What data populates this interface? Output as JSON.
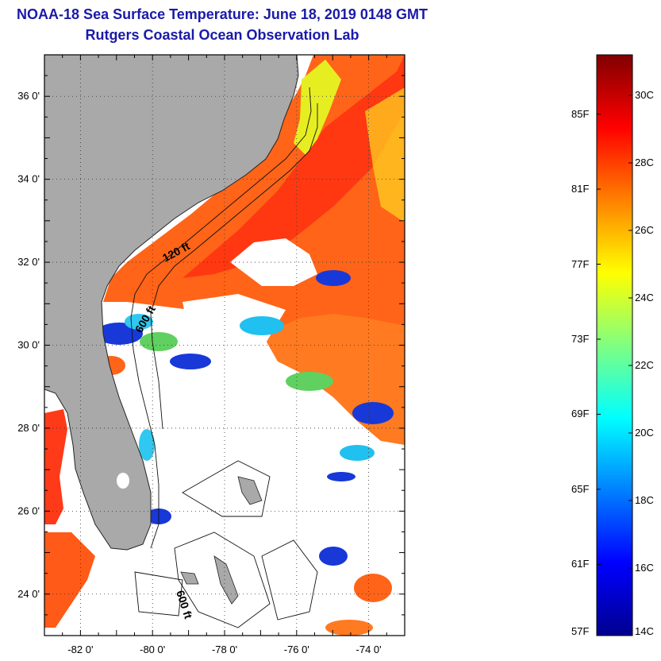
{
  "header": {
    "title": "NOAA-18 Sea Surface Temperature:  June 18, 2019 0148 GMT",
    "subtitle": "Rutgers Coastal Ocean Observation Lab"
  },
  "map": {
    "lat_range": [
      23,
      37
    ],
    "lon_range": [
      -83,
      -73
    ],
    "lat_labels": [
      {
        "lat": 36,
        "text": "36 0'"
      },
      {
        "lat": 34,
        "text": "34 0'"
      },
      {
        "lat": 32,
        "text": "32 0'"
      },
      {
        "lat": 30,
        "text": "30 0'"
      },
      {
        "lat": 28,
        "text": "28 0'"
      },
      {
        "lat": 26,
        "text": "26 0'"
      },
      {
        "lat": 24,
        "text": "24 0'"
      }
    ],
    "lon_labels": [
      {
        "lon": -82,
        "text": "-82 0'"
      },
      {
        "lon": -80,
        "text": "-80 0'"
      },
      {
        "lon": -78,
        "text": "-78 0'"
      },
      {
        "lon": -76,
        "text": "-76 0'"
      },
      {
        "lon": -74,
        "text": "-74 0'"
      }
    ],
    "contour_labels": {
      "c120": "120 ft",
      "c600a": "600 ft",
      "c600b": "600 ft"
    },
    "colors": {
      "land": "#a9a9a9",
      "ocean_warm": "#ff6a10",
      "ocean_hot": "#ff2a10",
      "gulfstream": "#ff8a20",
      "yellow_shelf": "#e8f020",
      "cloud_blue": "#1030d0",
      "cloud_cyan": "#20c0f0",
      "cloud_green": "#60d060"
    }
  },
  "colorbar": {
    "colors": [
      "#00008f",
      "#0000ff",
      "#0080ff",
      "#00ffff",
      "#80ff80",
      "#ffff00",
      "#ff8000",
      "#ff0000",
      "#800000"
    ],
    "celsius_labels": [
      {
        "value": 30,
        "text": "30C"
      },
      {
        "value": 28,
        "text": "28C"
      },
      {
        "value": 26,
        "text": "26C"
      },
      {
        "value": 24,
        "text": "24C"
      },
      {
        "value": 22,
        "text": "22C"
      },
      {
        "value": 20,
        "text": "20C"
      },
      {
        "value": 18,
        "text": "18C"
      },
      {
        "value": 16,
        "text": "16C"
      },
      {
        "value": 14,
        "text": "14C"
      }
    ],
    "fahrenheit_labels": [
      {
        "value": 85,
        "text": "85F"
      },
      {
        "value": 81,
        "text": "81F"
      },
      {
        "value": 77,
        "text": "77F"
      },
      {
        "value": 73,
        "text": "73F"
      },
      {
        "value": 69,
        "text": "69F"
      },
      {
        "value": 65,
        "text": "65F"
      },
      {
        "value": 61,
        "text": "61F"
      },
      {
        "value": 57,
        "text": "57F"
      }
    ]
  }
}
